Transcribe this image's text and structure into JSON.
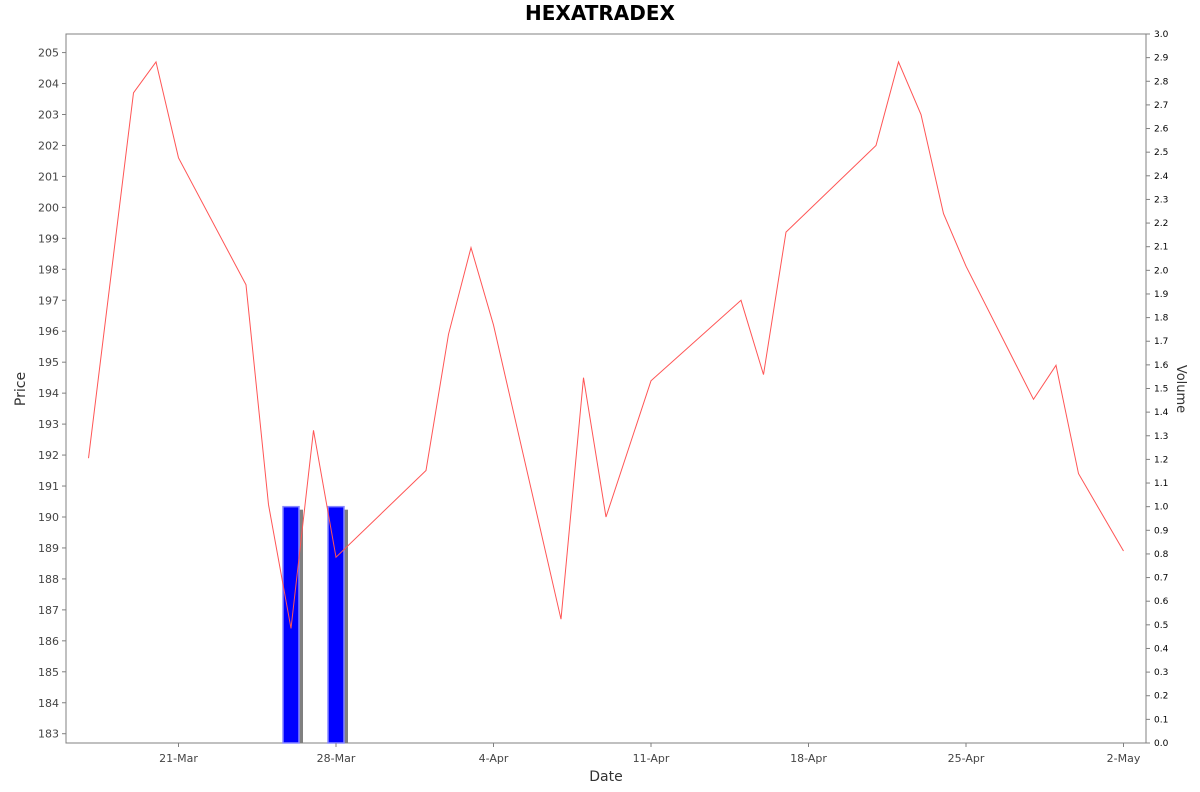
{
  "chart_data": {
    "type": "line",
    "title": "HEXATRADEX",
    "xlabel": "Date",
    "ylabel": "Price",
    "y2label": "Volume",
    "x_ticks": [
      "21-Mar",
      "28-Mar",
      "4-Apr",
      "11-Apr",
      "18-Apr",
      "25-Apr",
      "2-May"
    ],
    "x_range": [
      "2024-03-16",
      "2024-05-03"
    ],
    "ylim": [
      182.7,
      205.6
    ],
    "y_ticks": [
      183,
      184,
      185,
      186,
      187,
      188,
      189,
      190,
      191,
      192,
      193,
      194,
      195,
      196,
      197,
      198,
      199,
      200,
      201,
      202,
      203,
      204,
      205
    ],
    "y2lim": [
      0,
      3.0
    ],
    "y2_ticks": [
      "0.0",
      "0.1",
      "0.2",
      "0.3",
      "0.4",
      "0.5",
      "0.6",
      "0.7",
      "0.8",
      "0.9",
      "1.0",
      "1.1",
      "1.2",
      "1.3",
      "1.4",
      "1.5",
      "1.6",
      "1.7",
      "1.8",
      "1.9",
      "2.0",
      "2.1",
      "2.2",
      "2.3",
      "2.4",
      "2.5",
      "2.6",
      "2.7",
      "2.8",
      "2.9",
      "3.0"
    ],
    "grid": false,
    "colors": {
      "price_line": "#ff5555",
      "volume_bar": "#0000ff",
      "bar_shadow": "#808080",
      "bar_edge": "#8888ff",
      "frame": "#808080"
    },
    "price_series": {
      "dates": [
        "2024-03-17",
        "2024-03-19",
        "2024-03-20",
        "2024-03-21",
        "2024-03-24",
        "2024-03-25",
        "2024-03-26",
        "2024-03-27",
        "2024-03-28",
        "2024-04-01",
        "2024-04-02",
        "2024-04-03",
        "2024-04-04",
        "2024-04-07",
        "2024-04-08",
        "2024-04-09",
        "2024-04-11",
        "2024-04-15",
        "2024-04-16",
        "2024-04-17",
        "2024-04-21",
        "2024-04-22",
        "2024-04-23",
        "2024-04-24",
        "2024-04-25",
        "2024-04-28",
        "2024-04-29",
        "2024-04-30",
        "2024-05-02"
      ],
      "values": [
        191.9,
        203.7,
        204.7,
        201.6,
        197.5,
        190.4,
        186.4,
        192.8,
        188.7,
        191.5,
        195.9,
        198.7,
        196.2,
        186.7,
        194.5,
        190.0,
        194.4,
        197.0,
        194.6,
        199.2,
        202.0,
        204.7,
        203.0,
        199.8,
        198.1,
        193.8,
        194.9,
        191.4,
        188.9
      ]
    },
    "volume_series": {
      "dates": [
        "2024-03-26",
        "2024-03-28"
      ],
      "values": [
        1.0,
        1.0
      ]
    }
  }
}
